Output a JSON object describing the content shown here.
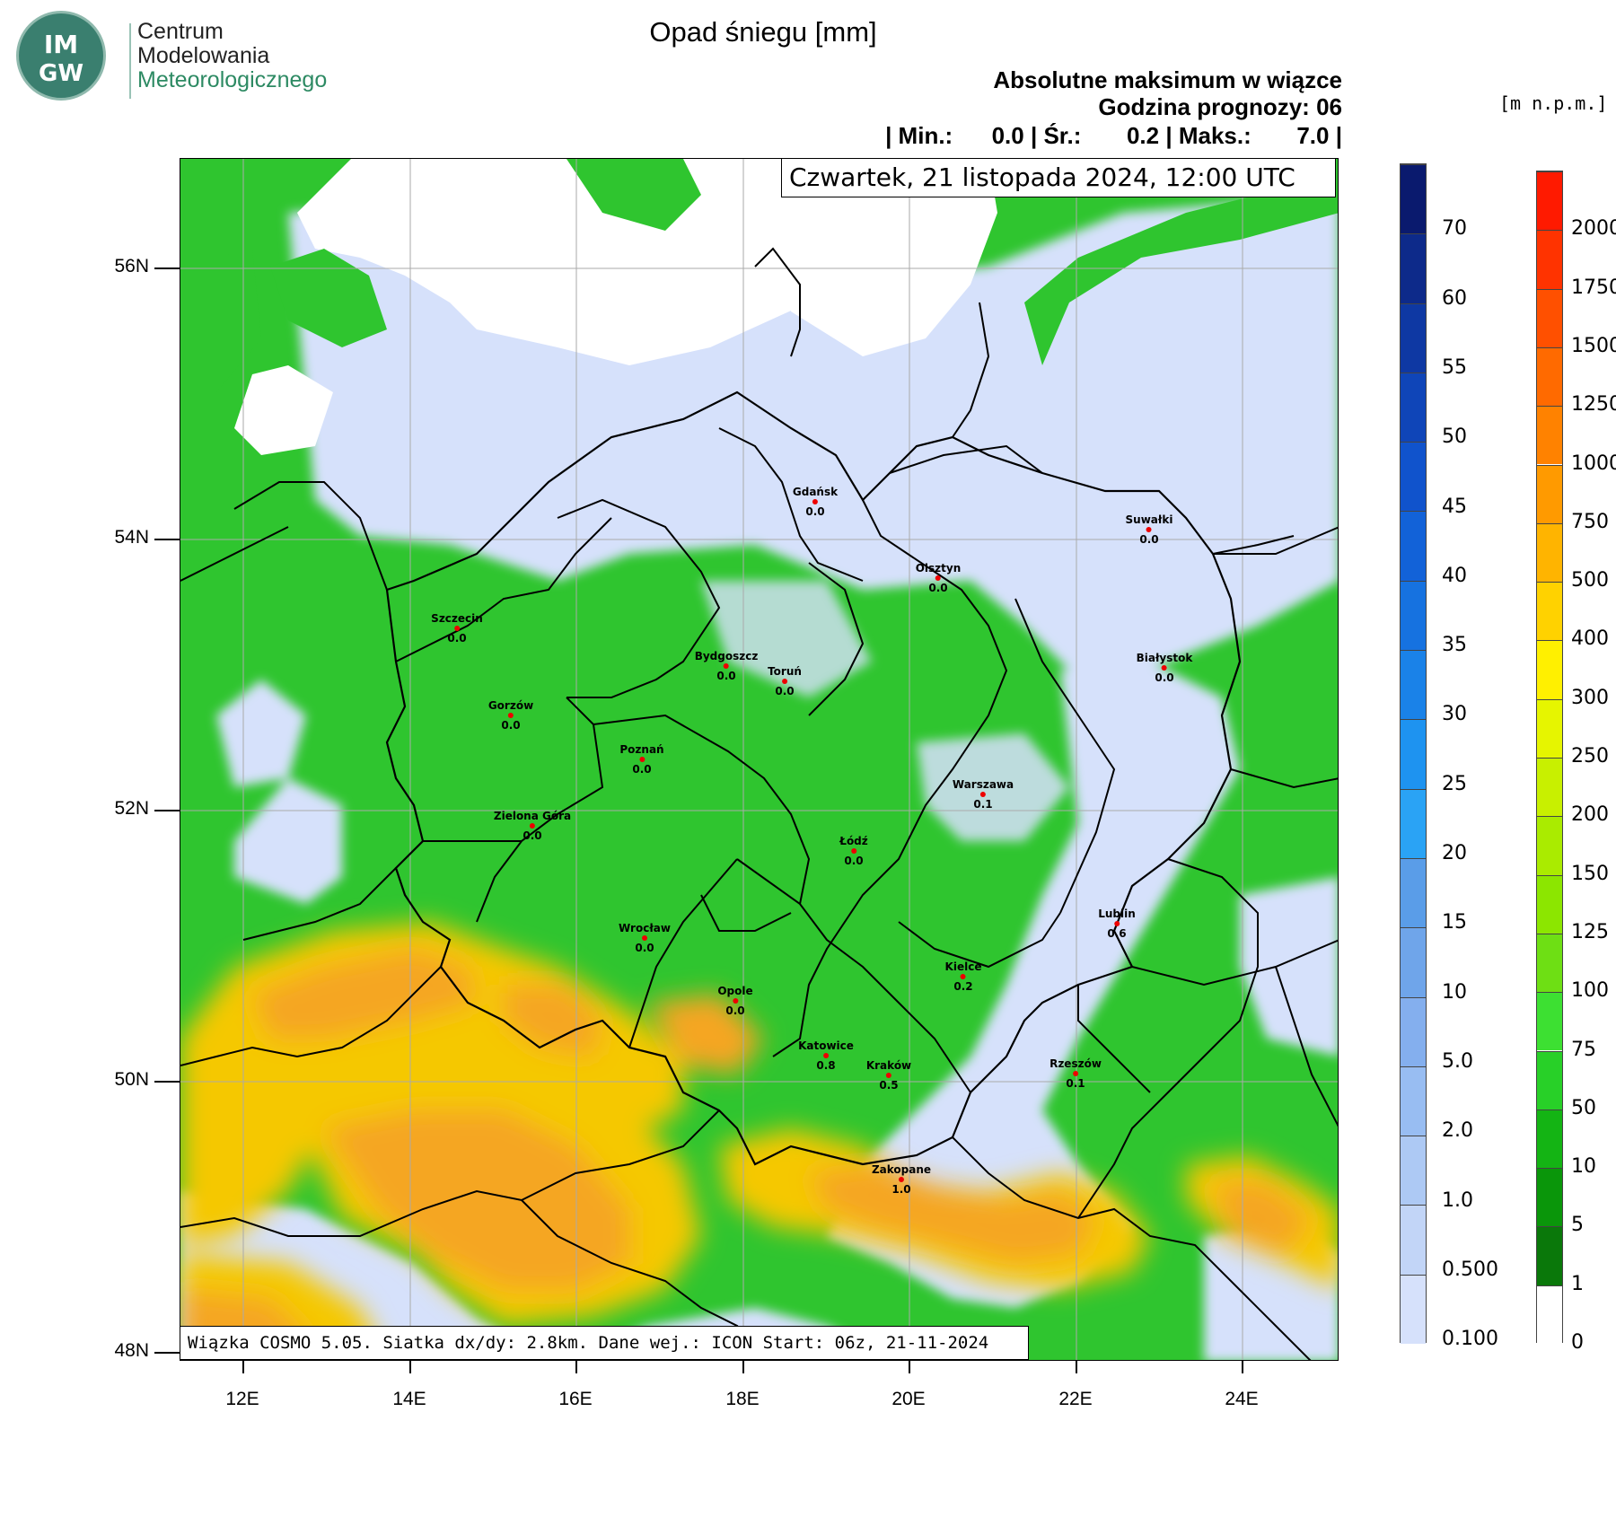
{
  "logo": {
    "mark_top": "IM",
    "mark_bottom": "GW",
    "line1": "Centrum",
    "line2": "Modelowania",
    "line3": "Meteorologicznego"
  },
  "title": "Opad śniegu [mm]",
  "subtitle1": "Absolutne maksimum w wiązce",
  "subtitle2": "Godzina prognozy: 06",
  "stats": {
    "min_label": "| Min.:",
    "min_value": "0.0",
    "avg_label": "| Śr.:",
    "avg_value": "0.2",
    "max_label": "| Maks.:",
    "max_value": "7.0",
    "end": "|"
  },
  "datetime": "Czwartek, 21 listopada 2024, 12:00 UTC",
  "footer": "Wiązka COSMO 5.05. Siatka dx/dy: 2.8km. Dane wej.: ICON Start: 06z, 21-11-2024",
  "axes": {
    "lat_labels": [
      "56N",
      "54N",
      "52N",
      "50N",
      "48N"
    ],
    "lat_values": [
      56,
      54,
      52,
      50,
      48
    ],
    "lon_labels": [
      "12E",
      "14E",
      "16E",
      "18E",
      "20E",
      "22E",
      "24E"
    ],
    "lon_values": [
      12,
      14,
      16,
      18,
      20,
      22,
      24
    ]
  },
  "cities": [
    {
      "name": "Gdańsk",
      "value": "0.0"
    },
    {
      "name": "Suwałki",
      "value": "0.0"
    },
    {
      "name": "Olsztyn",
      "value": "0.0"
    },
    {
      "name": "Szczecin",
      "value": "0.0"
    },
    {
      "name": "Bydgoszcz",
      "value": "0.0"
    },
    {
      "name": "Toruń",
      "value": "0.0"
    },
    {
      "name": "Białystok",
      "value": "0.0"
    },
    {
      "name": "Gorzów",
      "value": "0.0"
    },
    {
      "name": "Poznań",
      "value": "0.0"
    },
    {
      "name": "Warszawa",
      "value": "0.1"
    },
    {
      "name": "Zielona Góra",
      "value": "0.0"
    },
    {
      "name": "Łódź",
      "value": "0.0"
    },
    {
      "name": "Lublin",
      "value": "0.6"
    },
    {
      "name": "Wrocław",
      "value": "0.0"
    },
    {
      "name": "Kielce",
      "value": "0.2"
    },
    {
      "name": "Opole",
      "value": "0.0"
    },
    {
      "name": "Katowice",
      "value": "0.8"
    },
    {
      "name": "Kraków",
      "value": "0.5"
    },
    {
      "name": "Rzeszów",
      "value": "0.1"
    },
    {
      "name": "Zakopane",
      "value": "1.0"
    }
  ],
  "snow_scale": {
    "labels": [
      "70",
      "60",
      "55",
      "50",
      "45",
      "40",
      "35",
      "30",
      "25",
      "20",
      "15",
      "10",
      "5.0",
      "2.0",
      "1.0",
      "0.500",
      "0.100"
    ],
    "colors": [
      "#0a1a6e",
      "#0d2a8a",
      "#0e38a3",
      "#0f45b8",
      "#1053cc",
      "#1262d8",
      "#1672e0",
      "#1a82e8",
      "#1e93f0",
      "#2aa3f5",
      "#5a9de8",
      "#6fa5ea",
      "#84afee",
      "#98bdf2",
      "#adc9f4",
      "#c2d5f7",
      "#d6e1fb"
    ]
  },
  "terrain_scale": {
    "units": "[m n.p.m.]",
    "labels": [
      "2000",
      "1750",
      "1500",
      "1250",
      "1000",
      "750",
      "500",
      "400",
      "300",
      "250",
      "200",
      "150",
      "125",
      "100",
      "75",
      "50",
      "10",
      "5",
      "1",
      "0"
    ],
    "colors": [
      "#ff1a00",
      "#ff3300",
      "#ff5000",
      "#ff6a00",
      "#ff8200",
      "#ff9a00",
      "#ffb400",
      "#ffd200",
      "#fff000",
      "#e6f500",
      "#c8f000",
      "#aaeb00",
      "#8ce600",
      "#6edf14",
      "#3de032",
      "#28d028",
      "#14b414",
      "#0a960a",
      "#0a780a",
      "#ffffff"
    ]
  },
  "colors": {
    "land_green": "#2fc52f",
    "sea_white": "#ffffff",
    "snow_light": "#d6e1fb",
    "mountain_yellow": "#f5c800",
    "mountain_orange": "#f5a623"
  }
}
